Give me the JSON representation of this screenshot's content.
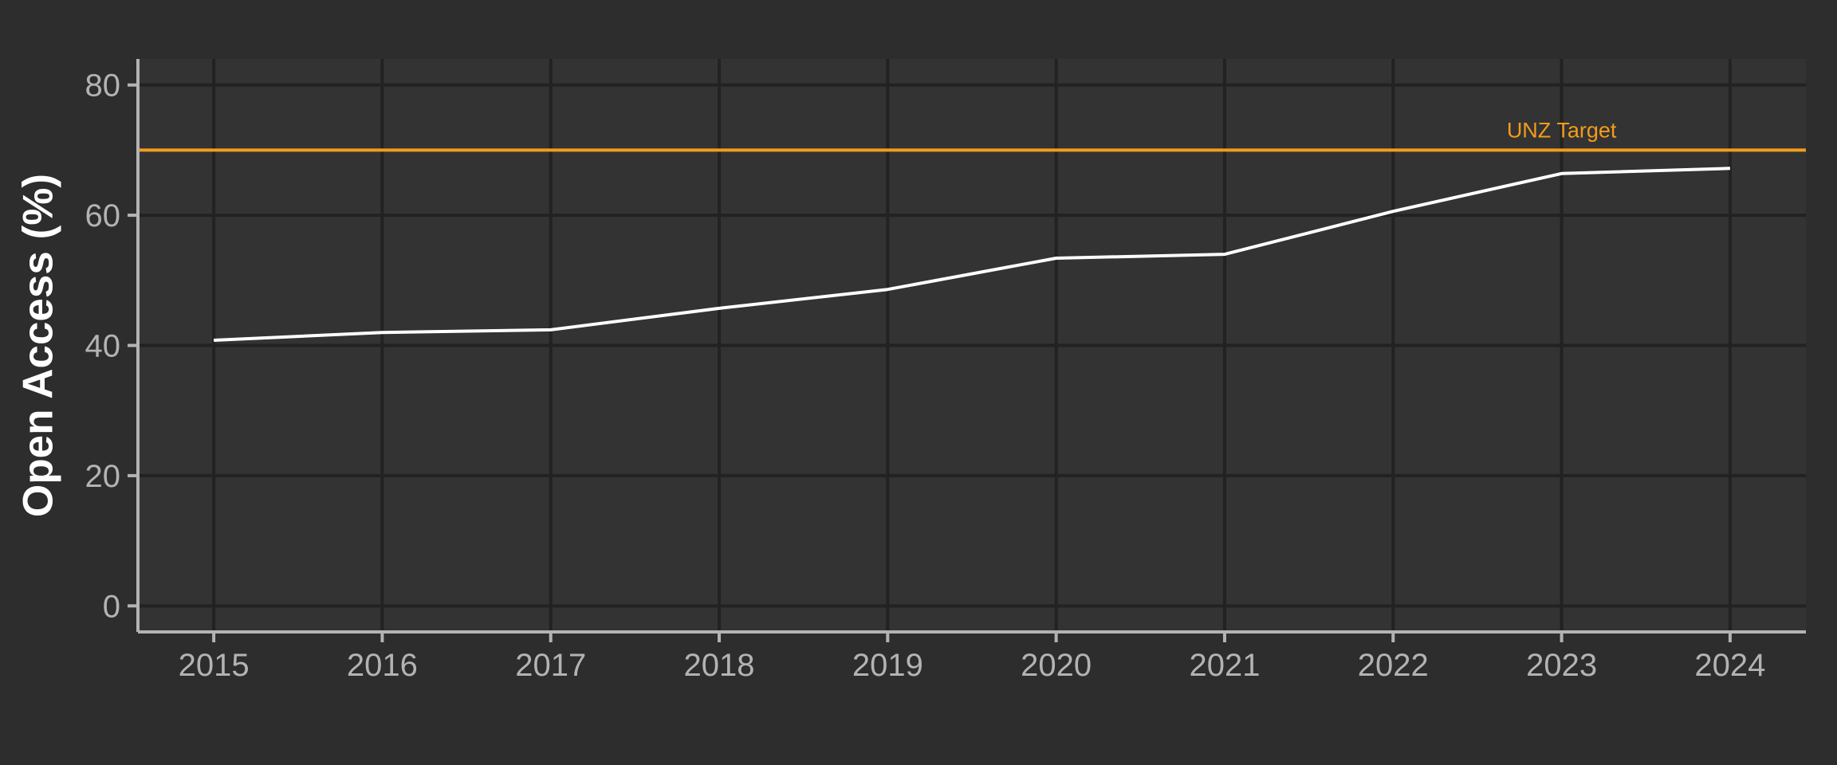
{
  "chart_data": {
    "type": "line",
    "x": [
      2015,
      2016,
      2017,
      2018,
      2019,
      2020,
      2021,
      2022,
      2023,
      2024
    ],
    "series": [
      {
        "values": [
          40.8,
          42.0,
          42.4,
          45.7,
          48.6,
          53.4,
          54.0,
          60.6,
          66.4,
          67.2
        ],
        "color": "#ffffff"
      }
    ],
    "xlabel": "",
    "ylabel": "Open Access (%)",
    "xlim": [
      2014.55,
      2024.45
    ],
    "ylim": [
      -4,
      84
    ],
    "y_ticks": [
      0,
      20,
      40,
      60,
      80
    ],
    "x_ticks": [
      2015,
      2016,
      2017,
      2018,
      2019,
      2020,
      2021,
      2022,
      2023,
      2024
    ],
    "grid": true,
    "reference_line": {
      "label": "UNZ Target",
      "value": 70,
      "label_x": 2023,
      "color": "#f39c1b"
    },
    "colors": {
      "background": "#2d2d2d",
      "panel": "#333333",
      "grid": "#222222",
      "axis": "#b3b3b3",
      "tick_text": "#b3b3b3",
      "title_text": "#ffffff"
    }
  }
}
